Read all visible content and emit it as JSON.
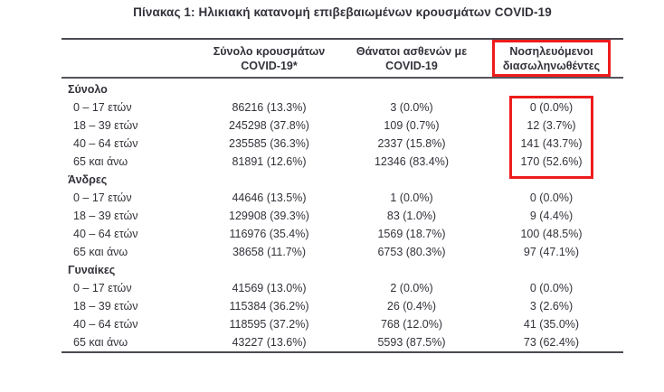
{
  "title": "Πίνακας 1: Ηλικιακή κατανομή επιβεβαιωμένων κρουσμάτων COVID-19",
  "colors": {
    "text": "#32323a",
    "border": "#4a4a52",
    "highlight_red": "#ee1c1c"
  },
  "table": {
    "columns": [
      {
        "line1": "Σύνολο κρουσμάτων",
        "line2": "COVID-19*"
      },
      {
        "line1": "Θάνατοι ασθενών με",
        "line2": "COVID-19"
      },
      {
        "line1": "Νοσηλευόμενοι",
        "line2": "διασωληνωθέντες",
        "highlighted": true
      }
    ],
    "sections": [
      {
        "label": "Σύνολο",
        "intubated_values_highlighted": true,
        "rows": [
          {
            "age": "0 – 17 ετών",
            "cases": "86216 (13.3%)",
            "deaths": "3 (0.0%)",
            "intubated": "0 (0.0%)"
          },
          {
            "age": "18 – 39 ετών",
            "cases": "245298 (37.8%)",
            "deaths": "109 (0.7%)",
            "intubated": "12 (3.7%)"
          },
          {
            "age": "40 – 64 ετών",
            "cases": "235585 (36.3%)",
            "deaths": "2337 (15.8%)",
            "intubated": "141 (43.7%)"
          },
          {
            "age": "65 και άνω",
            "cases": "81891 (12.6%)",
            "deaths": "12346 (83.4%)",
            "intubated": "170 (52.6%)"
          }
        ]
      },
      {
        "label": "Άνδρες",
        "rows": [
          {
            "age": "0 – 17 ετών",
            "cases": "44646 (13.5%)",
            "deaths": "1 (0.0%)",
            "intubated": "0 (0.0%)"
          },
          {
            "age": "18 – 39 ετών",
            "cases": "129908 (39.3%)",
            "deaths": "83 (1.0%)",
            "intubated": "9 (4.4%)"
          },
          {
            "age": "40 – 64 ετών",
            "cases": "116976 (35.4%)",
            "deaths": "1569 (18.7%)",
            "intubated": "100 (48.5%)"
          },
          {
            "age": "65 και άνω",
            "cases": "38658 (11.7%)",
            "deaths": "6753 (80.3%)",
            "intubated": "97 (47.1%)"
          }
        ]
      },
      {
        "label": "Γυναίκες",
        "rows": [
          {
            "age": "0 – 17 ετών",
            "cases": "41569 (13.0%)",
            "deaths": "2 (0.0%)",
            "intubated": "0 (0.0%)"
          },
          {
            "age": "18 – 39 ετών",
            "cases": "115384 (36.2%)",
            "deaths": "26 (0.4%)",
            "intubated": "3 (2.6%)"
          },
          {
            "age": "40 – 64 ετών",
            "cases": "118595 (37.2%)",
            "deaths": "768 (12.0%)",
            "intubated": "41 (35.0%)"
          },
          {
            "age": "65 και άνω",
            "cases": "43227 (13.6%)",
            "deaths": "5593 (87.5%)",
            "intubated": "73 (62.4%)"
          }
        ]
      }
    ]
  }
}
